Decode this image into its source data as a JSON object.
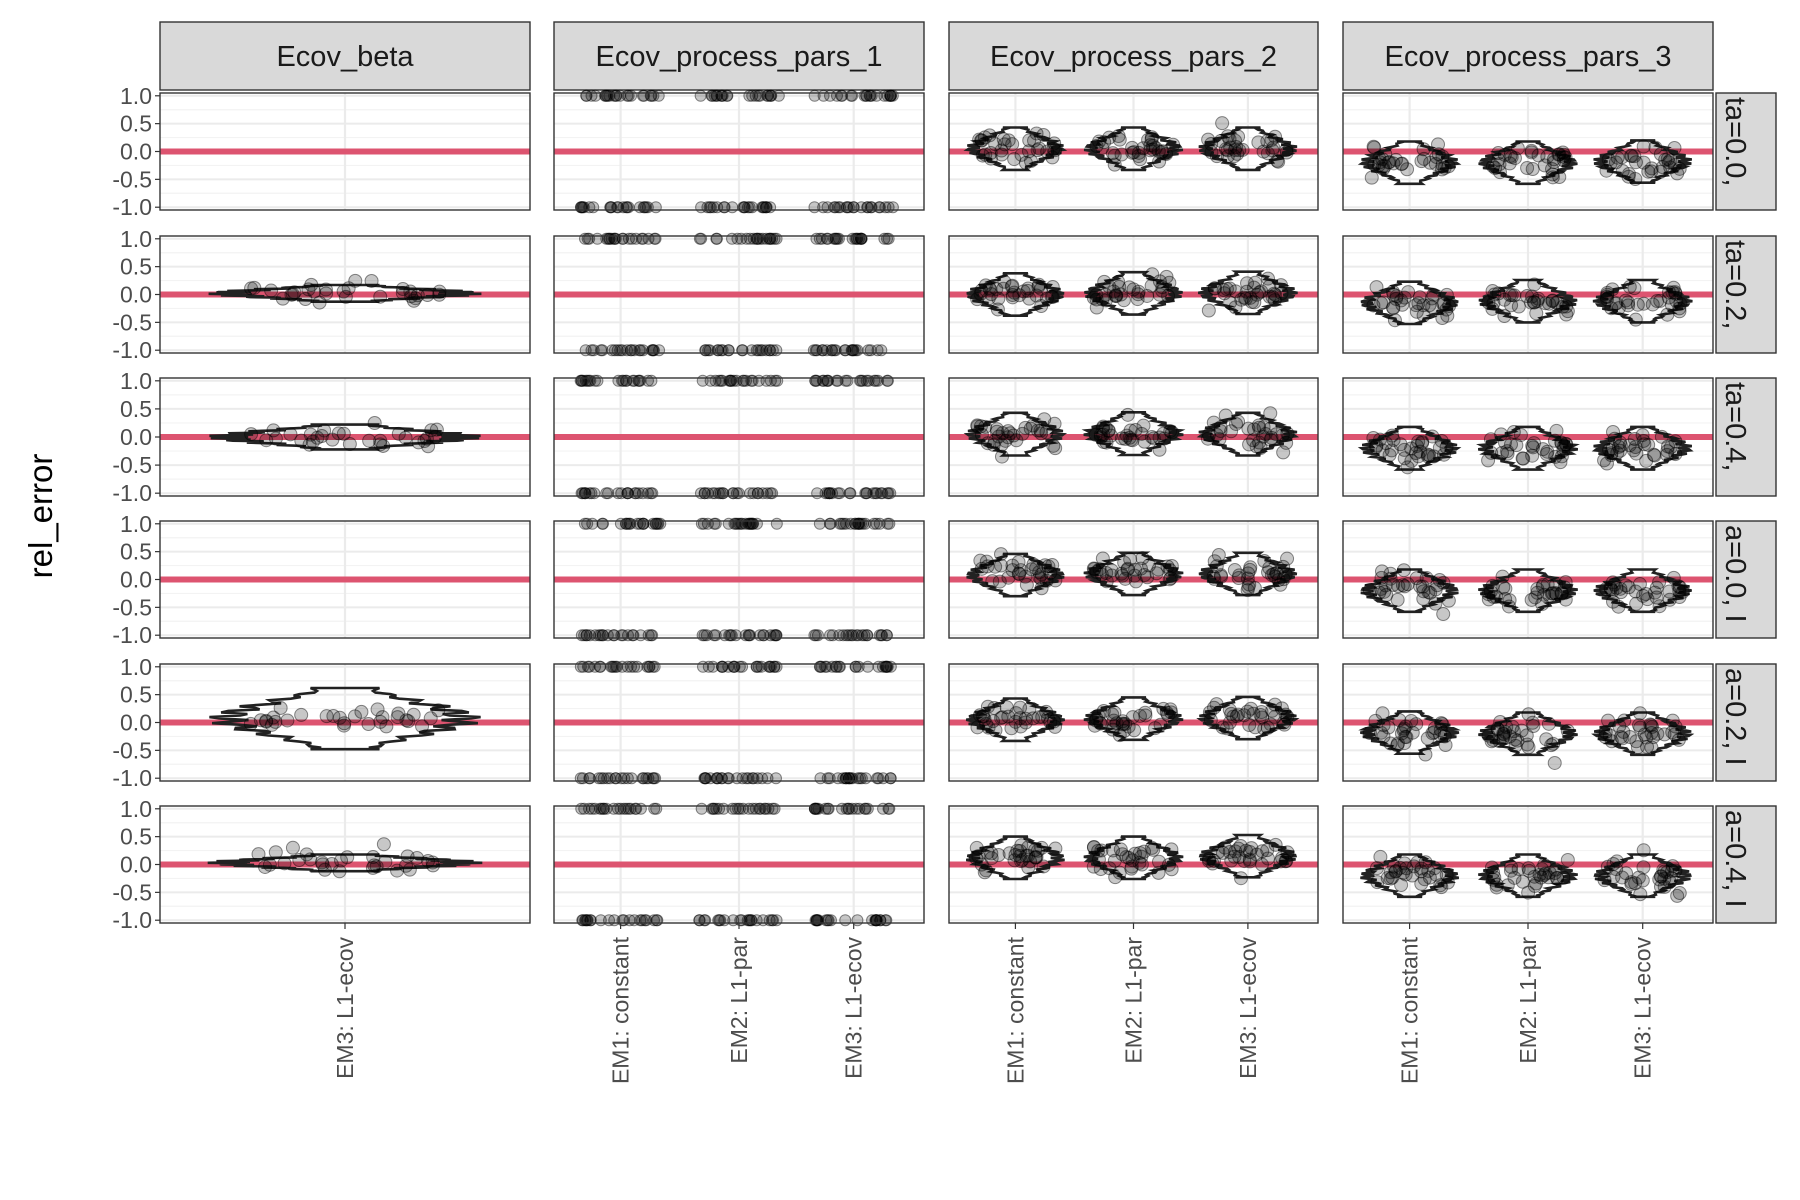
{
  "chart_data": {
    "type": "violin+jitter (faceted)",
    "ylabel": "rel_error",
    "xlabel": "",
    "ylim": [
      -1.05,
      1.05
    ],
    "y_ticks": [
      "1.0",
      "0.5",
      "0.0",
      "-0.5",
      "-1.0"
    ],
    "y_tick_values": [
      1.0,
      0.5,
      0.0,
      -0.5,
      -1.0
    ],
    "reference_line": {
      "y": 0,
      "color": "#dd5470"
    },
    "columns": [
      "Ecov_beta",
      "Ecov_process_pars_1",
      "Ecov_process_pars_2",
      "Ecov_process_pars_3"
    ],
    "rows": [
      "ta=0.0,",
      "ta=0.2,",
      "ta=0.4,",
      "a=0.0, I",
      "a=0.2, I",
      "a=0.4, I"
    ],
    "x_categories": [
      [
        "EM3: L1-ecov"
      ],
      [
        "EM1: constant",
        "EM2: L1-par",
        "EM3: L1-ecov"
      ],
      [
        "EM1: constant",
        "EM2: L1-par",
        "EM3: L1-ecov"
      ],
      [
        "EM1: constant",
        "EM2: L1-par",
        "EM3: L1-ecov"
      ]
    ],
    "summary_medians": {
      "Ecov_beta": [
        null,
        0.02,
        0.0,
        null,
        0.02,
        0.03
      ],
      "Ecov_process_pars_1": "binary: points at -1.0 and +1.0 in every row/model",
      "Ecov_process_pars_2": [
        [
          0.05,
          0.05,
          0.05
        ],
        [
          0.0,
          0.02,
          0.03
        ],
        [
          0.05,
          0.06,
          0.05
        ],
        [
          0.08,
          0.1,
          0.1
        ],
        [
          0.05,
          0.07,
          0.08
        ],
        [
          0.12,
          0.12,
          0.15
        ]
      ],
      "Ecov_process_pars_3": [
        [
          -0.2,
          -0.2,
          -0.18
        ],
        [
          -0.15,
          -0.12,
          -0.12
        ],
        [
          -0.2,
          -0.2,
          -0.2
        ],
        [
          -0.2,
          -0.2,
          -0.2
        ],
        [
          -0.18,
          -0.2,
          -0.2
        ],
        [
          -0.2,
          -0.2,
          -0.2
        ]
      ]
    },
    "grid": true,
    "legend": "none",
    "point_color": "#000000",
    "panel_strip_color": "#d9d9d9"
  }
}
